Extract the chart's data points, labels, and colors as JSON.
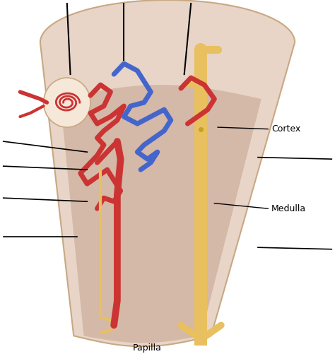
{
  "background_color": "#ffffff",
  "kidney_outer_color": "#e8d5c8",
  "kidney_inner_color": "#d4b8a8",
  "cortex_label": "Cortex",
  "medulla_label": "Medulla",
  "papilla_label": "Papilla",
  "red_color": "#cc3333",
  "blue_color": "#4466cc",
  "yellow_color": "#e8c060",
  "glom_fill": "#f5e8d8",
  "glom_edge": "#c8a882",
  "kidney_edge": "#c8a882"
}
